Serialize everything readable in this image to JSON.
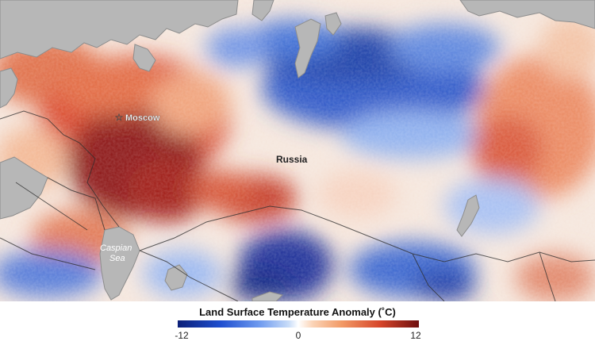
{
  "map": {
    "labels": {
      "moscow": "Moscow",
      "russia": "Russia",
      "caspian_line1": "Caspian",
      "caspian_line2": "Sea"
    }
  },
  "legend": {
    "title": "Land Surface Temperature Anomaly (˚C)",
    "min_label": "-12",
    "mid_label": "0",
    "max_label": "12",
    "scale_min": -12,
    "scale_max": 12,
    "colors": {
      "cold_extreme": "#0b1f78",
      "neutral": "#ffffff",
      "hot_extreme": "#6e0f0f"
    }
  },
  "colors": {
    "water": "#b7b7b7",
    "borders": "#2b2b2b",
    "labels": "#222222"
  }
}
